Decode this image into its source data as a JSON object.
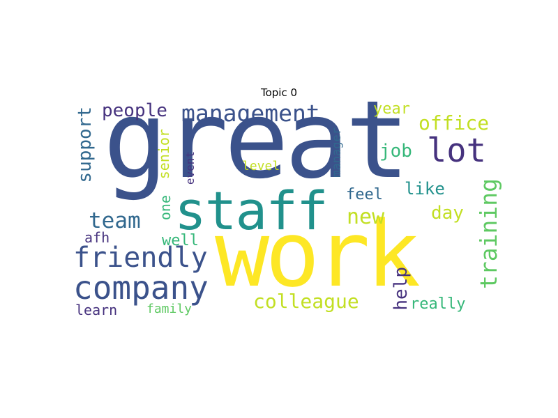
{
  "title": "Topic 0",
  "words": {
    "great": "great",
    "work": "work",
    "staff": "staff",
    "company": "company",
    "friendly": "friendly",
    "management": "management",
    "lot": "lot",
    "people": "people",
    "support": "support",
    "team": "team",
    "training": "training",
    "colleague": "colleague",
    "office": "office",
    "new": "new",
    "job": "job",
    "like": "like",
    "day": "day",
    "year": "year",
    "feel": "feel",
    "help": "help",
    "really": "really",
    "senior": "senior",
    "one": "one",
    "event": "event",
    "manager": "manager",
    "level": "level",
    "well": "well",
    "afh": "afh",
    "learn": "learn",
    "family": "family"
  },
  "colors": {
    "dark_blue": "#3b528b",
    "purple": "#46327e",
    "teal": "#21918c",
    "yellow": "#fde725",
    "yellow_green": "#c2df23",
    "green": "#5ec962",
    "sea_green": "#35b779",
    "slate": "#31688e"
  }
}
